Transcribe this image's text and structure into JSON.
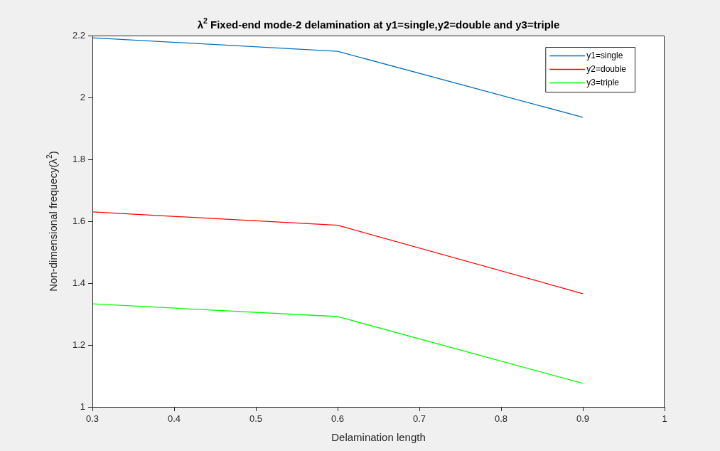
{
  "chart_data": {
    "type": "line",
    "title": "λ$^{2}$ Fixed-end mode-2 delamination at y1=single,y2=double and y3=triple",
    "xlabel": "Delamination length",
    "ylabel": "Non-dimensional frequecy(λ$^{2}$)",
    "x": [
      0.3,
      0.6,
      0.9
    ],
    "series": [
      {
        "name": "y1=single",
        "color": "#0072bd",
        "values": [
          2.193,
          2.149,
          1.936
        ]
      },
      {
        "name": "y2=double",
        "color": "#ff0000",
        "values": [
          1.63,
          1.587,
          1.366
        ]
      },
      {
        "name": "y3=triple",
        "color": "#00ff00",
        "values": [
          1.333,
          1.292,
          1.076
        ]
      }
    ],
    "xlim": [
      0.3,
      1
    ],
    "xticks": [
      0.3,
      0.4,
      0.5,
      0.6,
      0.7,
      0.8,
      0.9,
      1
    ],
    "ylim": [
      1,
      2.2
    ],
    "yticks": [
      1,
      1.2,
      1.4,
      1.6,
      1.8,
      2,
      2.2
    ],
    "grid": false,
    "legend": "top right",
    "marker": "none",
    "line_style": "solid"
  }
}
